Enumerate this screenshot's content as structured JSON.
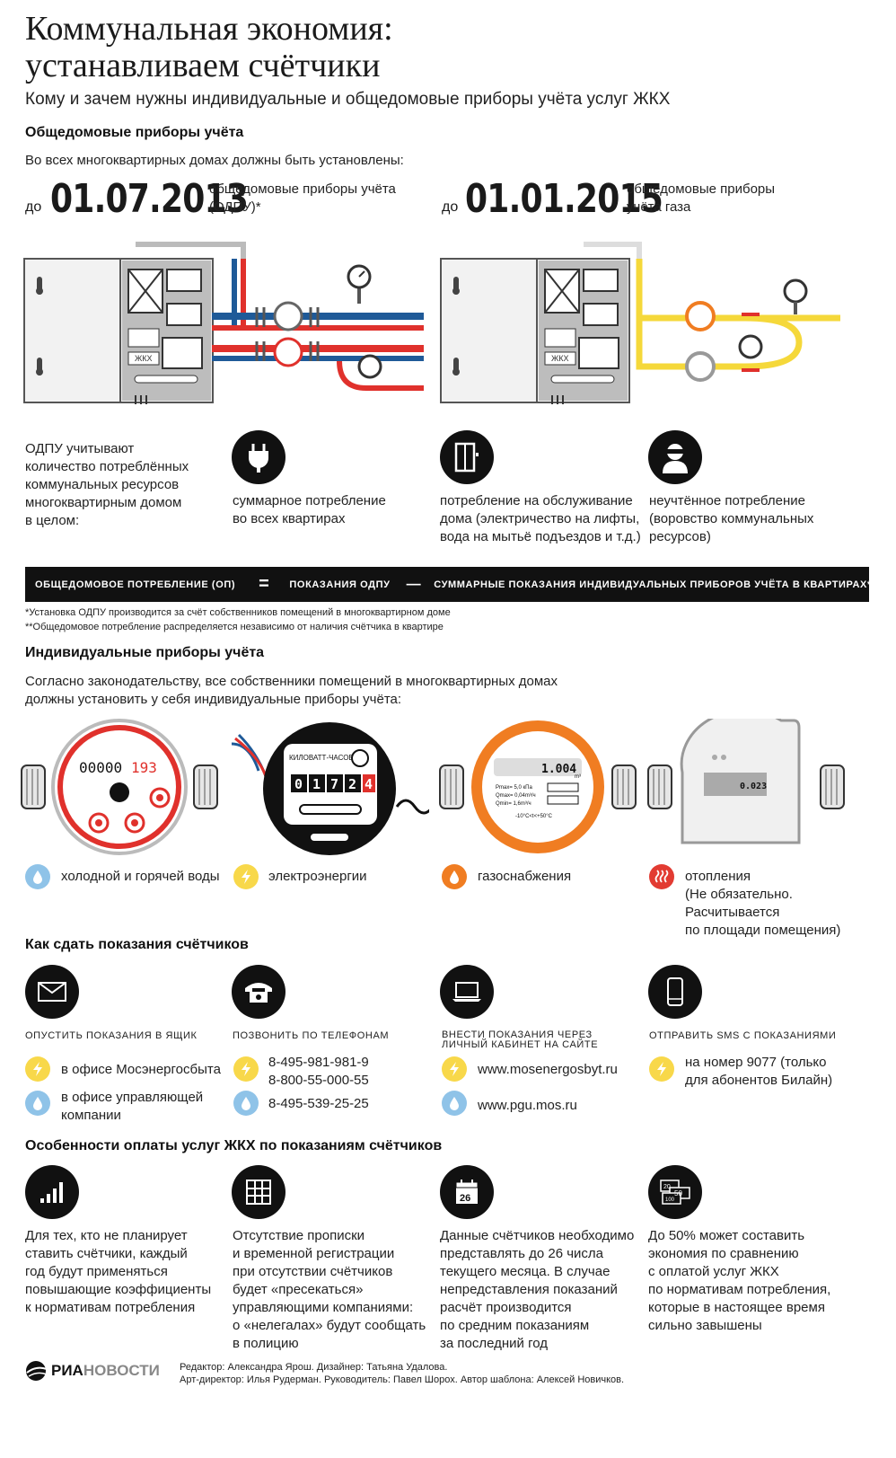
{
  "header": {
    "title_line1": "Коммунальная экономия:",
    "title_line2": "устанавливаем счётчики",
    "subtitle": "Кому и зачем нужны индивидуальные и общедомовые приборы учёта услуг ЖКХ"
  },
  "section_common": {
    "heading": "Общедомовые приборы учёта",
    "intro": "Во всех многоквартирных домах должны быть установлены:",
    "deadline1": {
      "prefix": "до",
      "date": "01.07.2013",
      "desc_line1": "общедомовые приборы учёта",
      "desc_line2": "(ОДПУ)*"
    },
    "deadline2": {
      "prefix": "до",
      "date": "01.01.2015",
      "desc_line1": "общедомовые приборы",
      "desc_line2": "учёта газа"
    },
    "meter_labels": {
      "elec_panel": "ЖКХ",
      "gas_panel": "ЖКХ"
    }
  },
  "odpu": {
    "intro": [
      "ОДПУ учитывают",
      "количество потреблённых",
      "коммунальных ресурсов",
      "многоквартирным домом",
      "в целом:"
    ],
    "items": [
      {
        "icon": "plug-icon",
        "lines": [
          "суммарное потребление",
          "во всех квартирах"
        ]
      },
      {
        "icon": "elevator-icon",
        "lines": [
          "потребление на обслуживание",
          "дома (электричество на лифты,",
          "вода на мытьё подъездов и т.д.)"
        ]
      },
      {
        "icon": "thief-icon",
        "lines": [
          "неучтённое потребление",
          "(воровство коммунальных",
          "ресурсов)"
        ]
      }
    ]
  },
  "formula": {
    "left": "ОБЩЕДОМОВОЕ ПОТРЕБЛЕНИЕ (ОП)",
    "eq": "=",
    "mid": "ПОКАЗАНИЯ ОДПУ",
    "minus": "—",
    "right": "СУММАРНЫЕ ПОКАЗАНИЯ ИНДИВИДУАЛЬНЫХ ПРИБОРОВ УЧЁТА В КВАРТИРАХ**"
  },
  "notes": {
    "n1": "*Установка ОДПУ производится за счёт собственников помещений в многоквартирном доме",
    "n2": "**Общедомовое потребление распределяется независимо от наличия счётчика в квартире"
  },
  "section_individual": {
    "heading": "Индивидуальные приборы учёта",
    "intro_line1": "Согласно законодательству, все собственники помещений в многоквартирных домах",
    "intro_line2": "должны установить у себя индивидуальные приборы учёта:",
    "water_meter_digits": "00000",
    "water_meter_red_digits": "193",
    "elec_meter_label": "КИЛОВАТТ-ЧАСОВ",
    "elec_meter_digits": [
      "0",
      "1",
      "7",
      "2",
      "4"
    ],
    "gas_meter_value": "1.004",
    "gas_meter_unit": "m³",
    "gas_meter_p": "Pmax= 5,0 кПа",
    "gas_meter_qmax": "Qmax= 0,04m³/ч",
    "gas_meter_qmin": "Qmin= 1,6m³/ч",
    "gas_meter_temp": "-10°C<t<+50°C",
    "heat_meter_value": "0.023",
    "types": [
      {
        "icon": "water-drop-icon",
        "label": "холодной и горячей воды"
      },
      {
        "icon": "lightning-icon",
        "label": "электроэнергии"
      },
      {
        "icon": "flame-icon",
        "label": "газоснабжения"
      },
      {
        "icon": "heat-icon",
        "lines": [
          "отопления",
          "(Не обязательно.",
          "Расчитывается",
          "по площади помещения)"
        ]
      }
    ]
  },
  "section_submit": {
    "heading": "Как сдать показания счётчиков",
    "methods": [
      {
        "icon": "envelope-icon",
        "title": "ОПУСТИТЬ ПОКАЗАНИЯ В ЯЩИК"
      },
      {
        "icon": "phone-icon",
        "title": "ПОЗВОНИТЬ ПО ТЕЛЕФОНАМ"
      },
      {
        "icon": "laptop-icon",
        "title_line1": "ВНЕСТИ ПОКАЗАНИЯ ЧЕРЕЗ",
        "title_line2": "ЛИЧНЫЙ КАБИНЕТ НА САЙТЕ"
      },
      {
        "icon": "mobile-phone-icon",
        "title": "ОТПРАВИТЬ SMS С ПОКАЗАНИЯМИ"
      }
    ],
    "details": {
      "box_elec": "в офисе Мосэнергосбыта",
      "box_water_line1": "в офисе управляющей",
      "box_water_line2": "компании",
      "phone_elec_1": "8-495-981-981-9",
      "phone_elec_2": "8-800-55-000-55",
      "phone_water": "8-495-539-25-25",
      "site_elec": "www.mosenergosbyt.ru",
      "site_water": "www.pgu.mos.ru",
      "sms_line1": "на номер 9077 (только",
      "sms_line2": "для абонентов Билайн)"
    }
  },
  "section_payment": {
    "heading": "Особенности оплаты услуг ЖКХ по показаниям счётчиков",
    "calendar_day": "26",
    "money_labels": [
      "20",
      "50",
      "100"
    ],
    "items": [
      {
        "icon": "signal-bars-icon",
        "lines": [
          "Для тех, кто не планирует",
          "ставить счётчики, каждый",
          "год будут применяться",
          "повышающие коэффициенты",
          "к нормативам потребления"
        ]
      },
      {
        "icon": "grid-icon",
        "lines": [
          "Отсутствие прописки",
          "и временной регистрации",
          "при отсутствии счётчиков",
          "будет «пресекаться»",
          "управляющими компаниями:",
          "о «нелегалах» будут сообщать",
          "в полицию"
        ]
      },
      {
        "icon": "calendar-icon",
        "lines": [
          "Данные счётчиков необходимо",
          "представлять до 26 числа",
          "текущего месяца. В случае",
          "непредставления показаний",
          "расчёт производится",
          "по средним показаниям",
          "за последний год"
        ]
      },
      {
        "icon": "money-icon",
        "lines": [
          "До 50% может составить",
          "экономия по сравнению",
          "с оплатой услуг ЖКХ",
          "по нормативам потребления,",
          "которые в настоящее время",
          "сильно завышены"
        ]
      }
    ]
  },
  "footer": {
    "logo_a": "РИА",
    "logo_b": "НОВОСТИ",
    "credits_line1": "Редактор: Александра Ярош. Дизайнер: Татьяна Удалова.",
    "credits_line2": "Арт-директор: Илья Рудерман. Руководитель: Павел Шорох. Автор шаблона: Алексей Новичков."
  },
  "colors": {
    "blue": "#8fc3e8",
    "yellow": "#f8d84a",
    "orange": "#f07d22",
    "red": "#e23b32",
    "pipe_blue": "#1f5a98",
    "pipe_red": "#e0312c",
    "pipe_yellow": "#f5d83a"
  }
}
